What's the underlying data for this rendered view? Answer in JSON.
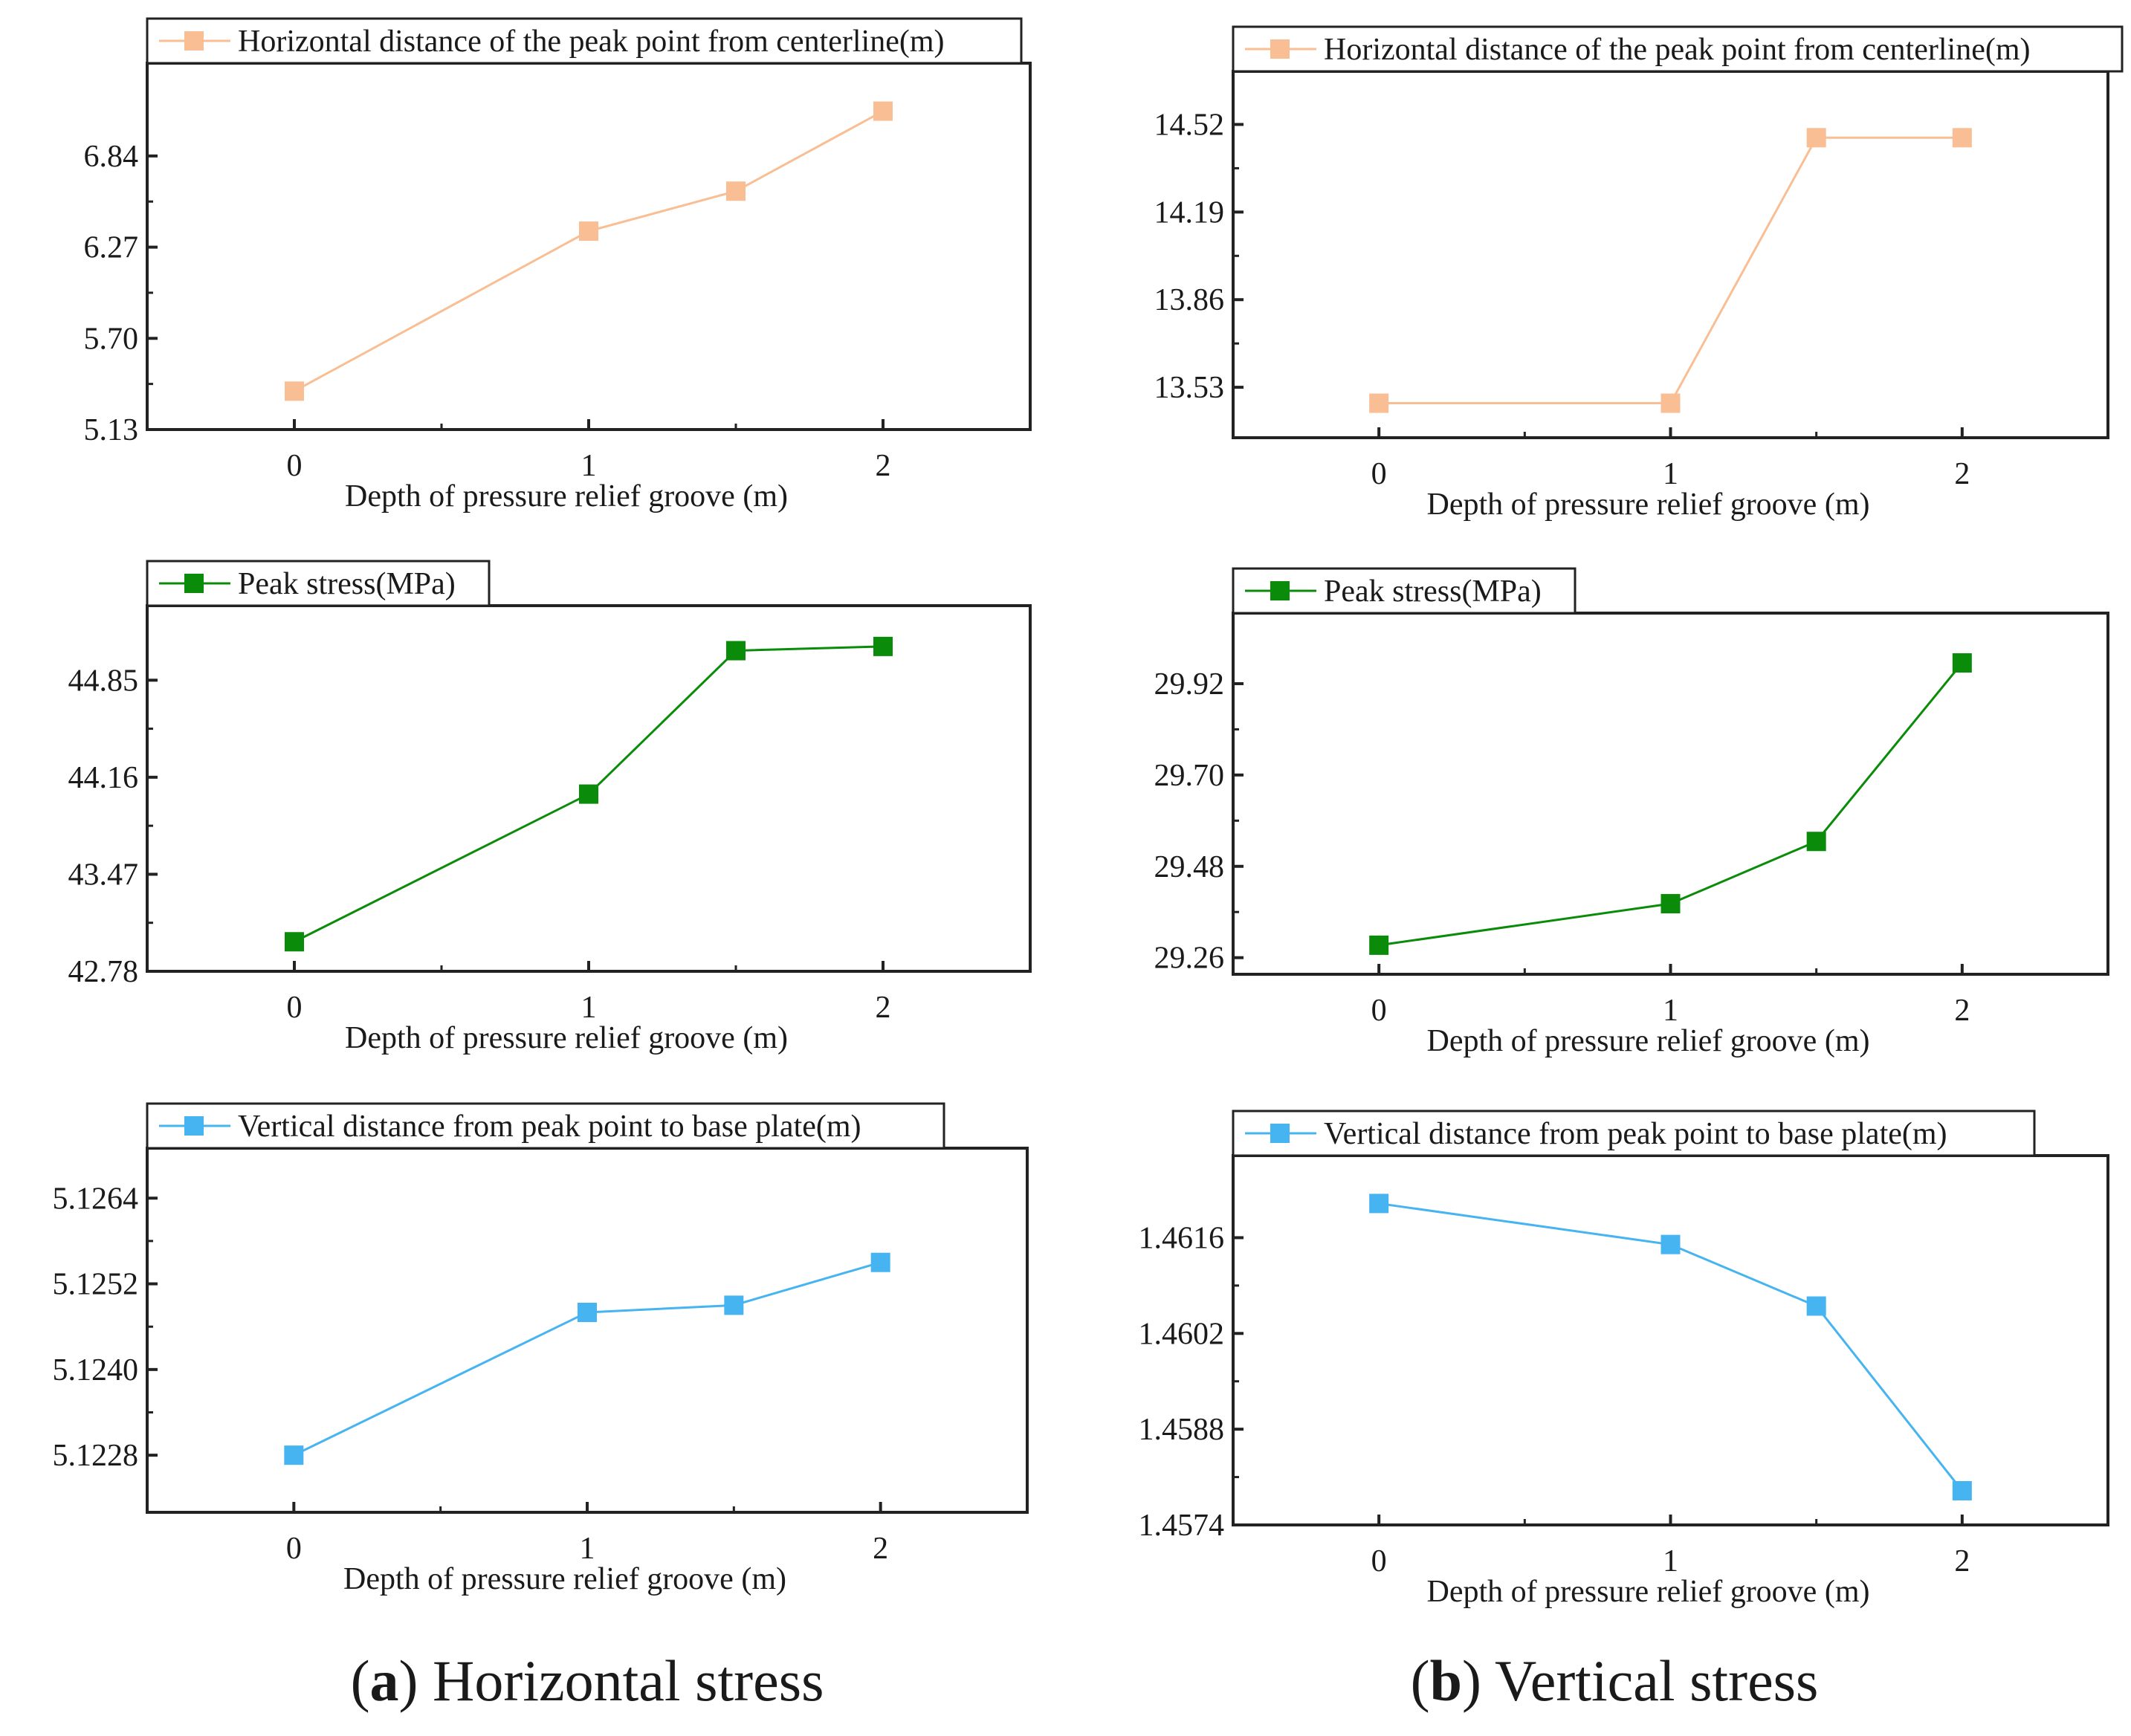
{
  "figure": {
    "captions": [
      {
        "letter": "a",
        "text": "Horizontal stress",
        "prefix": "(",
        "sep": ") "
      },
      {
        "letter": "b",
        "text": "Vertical stress",
        "prefix": "(",
        "sep": ") "
      }
    ]
  },
  "chart_data": [
    {
      "id": "a1",
      "column": "a",
      "type": "line",
      "series": [
        {
          "name": "Horizontal distance of the peak point from centerline(m)",
          "color": "#F9BE93",
          "x": [
            0,
            1,
            1.5,
            2
          ],
          "y": [
            5.37,
            6.37,
            6.62,
            7.12
          ]
        }
      ],
      "xlabel": "Depth of pressure relief groove (m)",
      "xticks": [
        0,
        1,
        2
      ],
      "xlim": [
        -0.5,
        2.5
      ],
      "yticks": [
        "5.13",
        "5.70",
        "6.27",
        "6.84"
      ],
      "ylim": [
        5.13,
        7.42
      ]
    },
    {
      "id": "a2",
      "column": "a",
      "type": "line",
      "series": [
        {
          "name": "Peak stress(MPa)",
          "color": "#0A8C0A",
          "x": [
            0,
            1,
            1.5,
            2
          ],
          "y": [
            42.99,
            44.04,
            45.06,
            45.09
          ]
        }
      ],
      "xlabel": "Depth of pressure relief groove (m)",
      "xticks": [
        0,
        1,
        2
      ],
      "xlim": [
        -0.5,
        2.5
      ],
      "yticks": [
        "42.78",
        "43.47",
        "44.16",
        "44.85"
      ],
      "ylim": [
        42.78,
        45.38
      ]
    },
    {
      "id": "a3",
      "column": "a",
      "type": "line",
      "series": [
        {
          "name": "Vertical distance from peak point to base plate(m)",
          "color": "#46B4F0",
          "x": [
            0,
            1,
            1.5,
            2
          ],
          "y": [
            5.1228,
            5.1248,
            5.1249,
            5.1255
          ]
        }
      ],
      "xlabel": "Depth of pressure relief groove (m)",
      "xticks": [
        0,
        1,
        2
      ],
      "xlim": [
        -0.5,
        2.5
      ],
      "yticks": [
        "5.1228",
        "5.1240",
        "5.1252",
        "5.1264"
      ],
      "ylim": [
        5.122,
        5.1271
      ]
    },
    {
      "id": "b1",
      "column": "b",
      "type": "line",
      "series": [
        {
          "name": "Horizontal distance of the peak point from centerline(m)",
          "color": "#F9BE93",
          "x": [
            0,
            1,
            1.5,
            2
          ],
          "y": [
            13.47,
            13.47,
            14.47,
            14.47
          ]
        }
      ],
      "xlabel": "Depth of pressure relief groove (m)",
      "xticks": [
        0,
        1,
        2
      ],
      "xlim": [
        -0.5,
        2.5
      ],
      "yticks": [
        "13.53",
        "13.86",
        "14.19",
        "14.52"
      ],
      "ylim": [
        13.34,
        14.72
      ]
    },
    {
      "id": "b2",
      "column": "b",
      "type": "line",
      "series": [
        {
          "name": "Peak stress(MPa)",
          "color": "#0A8C0A",
          "x": [
            0,
            1,
            1.5,
            2
          ],
          "y": [
            29.29,
            29.39,
            29.54,
            29.97
          ]
        }
      ],
      "xlabel": "Depth of pressure relief groove (m)",
      "xticks": [
        0,
        1,
        2
      ],
      "xlim": [
        -0.5,
        2.5
      ],
      "yticks": [
        "29.26",
        "29.48",
        "29.70",
        "29.92"
      ],
      "ylim": [
        29.22,
        30.09
      ]
    },
    {
      "id": "b3",
      "column": "b",
      "type": "line",
      "series": [
        {
          "name": "Vertical distance from peak point to base plate(m)",
          "color": "#46B4F0",
          "x": [
            0,
            1,
            1.5,
            2
          ],
          "y": [
            1.4621,
            1.4615,
            1.4606,
            1.4579
          ]
        }
      ],
      "xlabel": "Depth of pressure relief groove (m)",
      "xticks": [
        0,
        1,
        2
      ],
      "xlim": [
        -0.5,
        2.5
      ],
      "yticks": [
        "1.4574",
        "1.4588",
        "1.4602",
        "1.4616"
      ],
      "ylim": [
        1.4574,
        1.4628
      ]
    }
  ]
}
